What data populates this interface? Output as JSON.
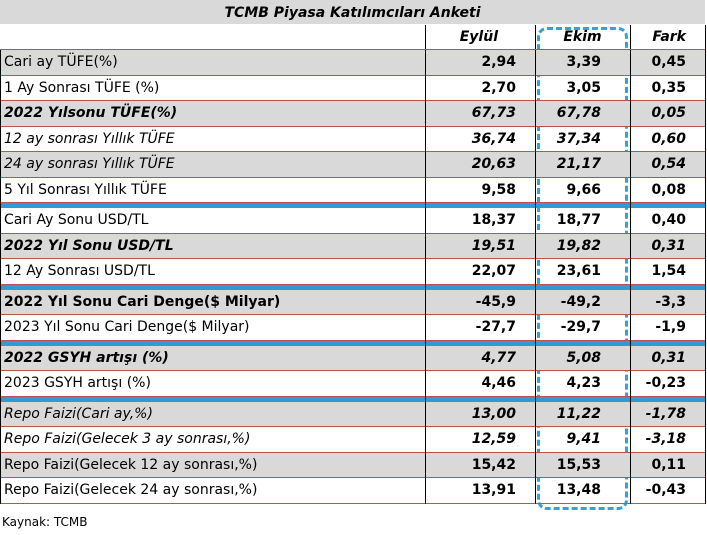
{
  "title": "TCMB Piyasa Katılımcıları Anketi",
  "columns": [
    "Eylül",
    "Ekim",
    "Fark"
  ],
  "rows": [
    [
      "Cari ay TÜFE(%)",
      "2,94",
      "3,39",
      "0,45"
    ],
    [
      "1 Ay Sonrası TÜFE (%)",
      "2,70",
      "3,05",
      "0,35"
    ],
    [
      "2022 Yılsonu TÜFE(%)",
      "67,73",
      "67,78",
      "0,05"
    ],
    [
      "12 ay sonrası Yıllık TÜFE",
      "36,74",
      "37,34",
      "0,60"
    ],
    [
      "24 ay sonrası Yıllık TÜFE",
      "20,63",
      "21,17",
      "0,54"
    ],
    [
      "5 Yıl Sonrası Yıllık TÜFE",
      "9,58",
      "9,66",
      "0,08"
    ],
    [
      "Cari Ay Sonu USD/TL",
      "18,37",
      "18,77",
      "0,40"
    ],
    [
      "2022 Yıl Sonu USD/TL",
      "19,51",
      "19,82",
      "0,31"
    ],
    [
      "12 Ay Sonrası USD/TL",
      "22,07",
      "23,61",
      "1,54"
    ],
    [
      "2022 Yıl Sonu Cari Denge($ Milyar)",
      "-45,9",
      "-49,2",
      "-3,3"
    ],
    [
      "2023 Yıl Sonu Cari Denge($ Milyar)",
      "-27,7",
      "-29,7",
      "-1,9"
    ],
    [
      "2022 GSYH artışı (%)",
      "4,77",
      "5,08",
      "0,31"
    ],
    [
      "2023 GSYH artışı (%)",
      "4,46",
      "4,23",
      "-0,23"
    ],
    [
      "Repo Faizi(Cari ay,%)",
      "13,00",
      "11,22",
      "-1,78"
    ],
    [
      "Repo Faizi(Gelecek 3 ay sonrası,%)",
      "12,59",
      "9,41",
      "-3,18"
    ],
    [
      "Repo Faizi(Gelecek 12 ay sonrası,%)",
      "15,42",
      "15,53",
      "0,11"
    ],
    [
      "Repo Faizi(Gelecek 24 ay sonrası,%)",
      "13,91",
      "13,48",
      "-0,43"
    ]
  ],
  "source": "Kaynak: TCMB"
}
